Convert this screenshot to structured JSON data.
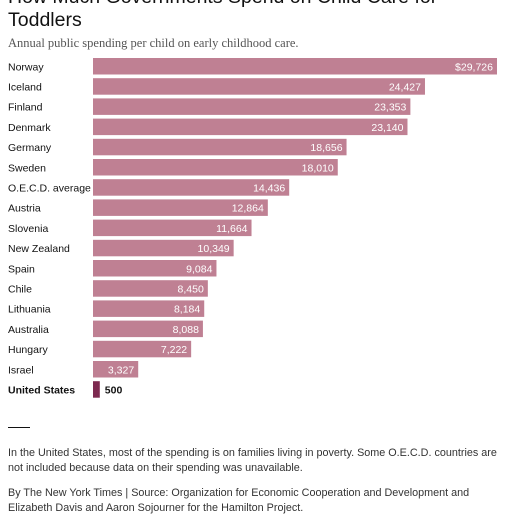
{
  "header": {
    "title": "How Much Governments Spend on Child Care for Toddlers",
    "subtitle": "Annual public spending per child on early childhood care."
  },
  "colors": {
    "bar": "#bf8093",
    "highlight_bar": "#7d2a50",
    "value_text_inside": "#ffffff",
    "value_text_outside": "#121212"
  },
  "chart_data": {
    "type": "bar",
    "orientation": "horizontal",
    "categories": [
      "Norway",
      "Iceland",
      "Finland",
      "Denmark",
      "Germany",
      "Sweden",
      "O.E.C.D. average",
      "Austria",
      "Slovenia",
      "New Zealand",
      "Spain",
      "Chile",
      "Lithuania",
      "Australia",
      "Hungary",
      "Israel",
      "United States"
    ],
    "values": [
      29726,
      24427,
      23353,
      23140,
      18656,
      18010,
      14436,
      12864,
      11664,
      10349,
      9084,
      8450,
      8184,
      8088,
      7222,
      3327,
      500
    ],
    "value_labels": [
      "$29,726",
      "24,427",
      "23,353",
      "23,140",
      "18,656",
      "18,010",
      "14,436",
      "12,864",
      "11,664",
      "10,349",
      "9,084",
      "8,450",
      "8,184",
      "8,088",
      "7,222",
      "3,327",
      "500"
    ],
    "highlight": "United States",
    "xlim": [
      0,
      29726
    ],
    "grid": false,
    "legend": "none"
  },
  "footer": {
    "note": "In the United States, most of the spending is on families living in poverty. Some O.E.C.D. countries are not included because data on their spending was unavailable.",
    "credit": "By The New York Times | Source: Organization for Economic Cooperation and Development and Elizabeth Davis and Aaron Sojourner for the Hamilton Project."
  }
}
